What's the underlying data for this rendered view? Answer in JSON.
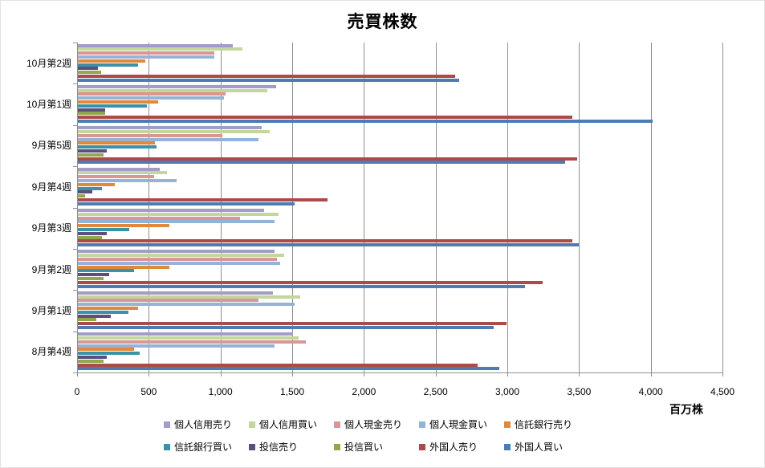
{
  "title": "売買株数",
  "unit_label": "百万株",
  "chart_data": {
    "type": "bar",
    "orientation": "horizontal",
    "title": "売買株数",
    "xlabel": "百万株",
    "xlim": [
      0,
      4500
    ],
    "xticks": [
      0,
      500,
      1000,
      1500,
      2000,
      2500,
      3000,
      3500,
      4000,
      4500
    ],
    "xtick_labels": [
      "0",
      "500",
      "1,000",
      "1,500",
      "2,000",
      "2,500",
      "3,000",
      "3,500",
      "4,000",
      "4,500"
    ],
    "grid": true,
    "legend_position": "bottom",
    "categories": [
      "10月第2週",
      "10月第1週",
      "9月第5週",
      "9月第4週",
      "9月第3週",
      "9月第2週",
      "9月第1週",
      "8月第4週"
    ],
    "series": [
      {
        "name": "個人信用売り",
        "color": "#a39bc8",
        "values": [
          1080,
          1380,
          1280,
          570,
          1300,
          1370,
          1360,
          1500
        ]
      },
      {
        "name": "個人信用買い",
        "color": "#c3d69b",
        "values": [
          1150,
          1320,
          1340,
          620,
          1400,
          1440,
          1550,
          1540
        ]
      },
      {
        "name": "個人現金売り",
        "color": "#d99694",
        "values": [
          950,
          1030,
          1010,
          530,
          1130,
          1390,
          1260,
          1590
        ]
      },
      {
        "name": "個人現金買い",
        "color": "#95b3d7",
        "values": [
          950,
          1020,
          1260,
          690,
          1370,
          1410,
          1510,
          1370
        ]
      },
      {
        "name": "信託銀行売り",
        "color": "#e0893d",
        "values": [
          470,
          560,
          540,
          260,
          640,
          640,
          420,
          390
        ]
      },
      {
        "name": "信託銀行買い",
        "color": "#3a92a8",
        "values": [
          420,
          480,
          550,
          170,
          360,
          390,
          350,
          430
        ]
      },
      {
        "name": "投信売り",
        "color": "#5c4e7d",
        "values": [
          140,
          190,
          200,
          100,
          200,
          220,
          230,
          200
        ]
      },
      {
        "name": "投信買い",
        "color": "#8fa84e",
        "values": [
          160,
          190,
          180,
          50,
          170,
          180,
          130,
          180
        ]
      },
      {
        "name": "外国人売り",
        "color": "#aa4b47",
        "values": [
          2630,
          3450,
          3480,
          1740,
          3450,
          3240,
          2990,
          2790
        ]
      },
      {
        "name": "外国人買い",
        "color": "#4d7cb4",
        "values": [
          2660,
          4010,
          3400,
          1510,
          3490,
          3120,
          2900,
          2940
        ]
      }
    ]
  }
}
